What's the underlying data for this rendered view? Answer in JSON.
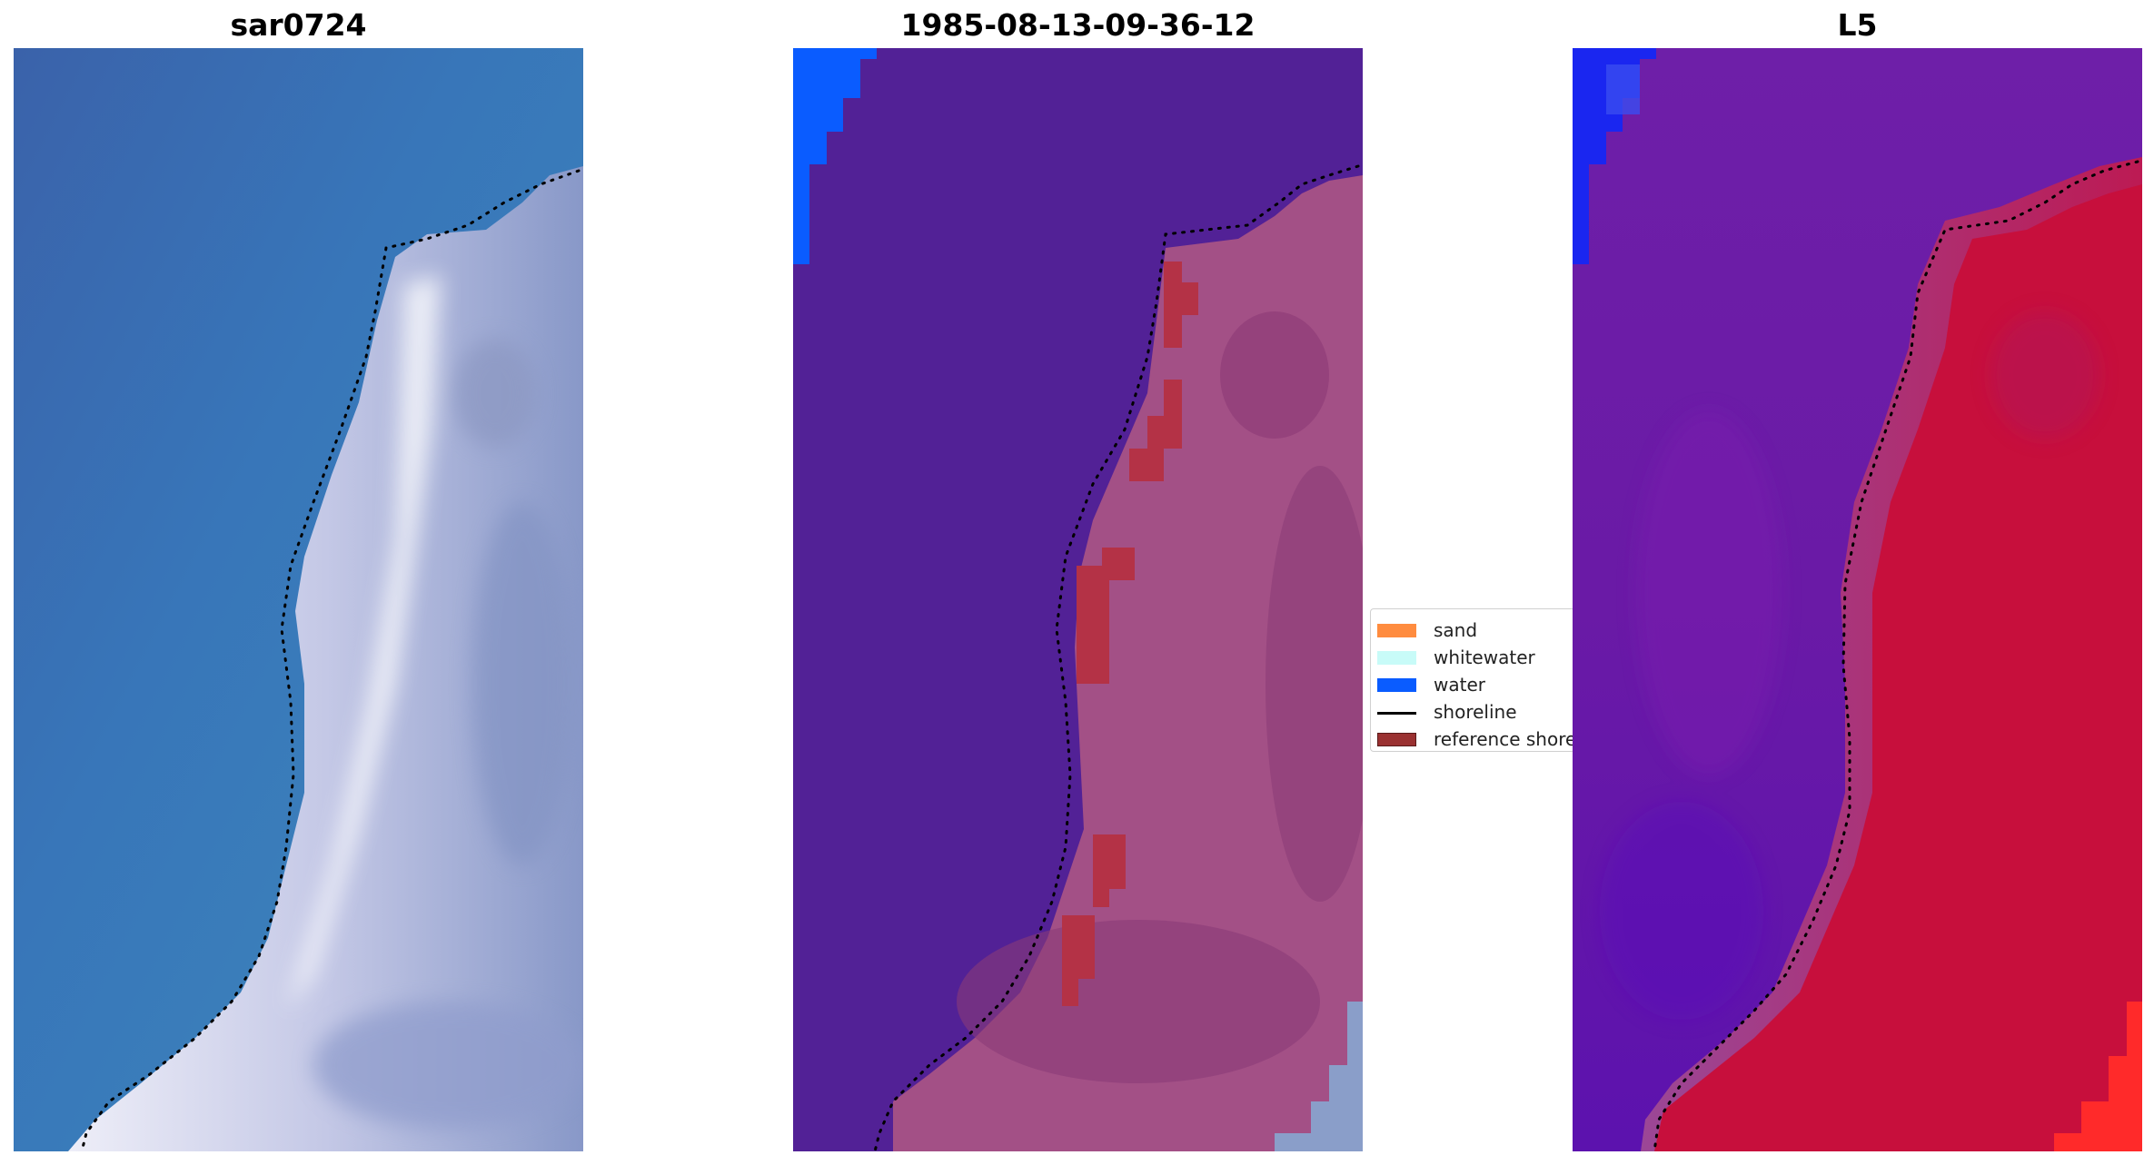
{
  "panels": [
    {
      "title": "sar0724",
      "image": "RGB satellite view of coastline with blue ocean on left and white surf/sand zone on right"
    },
    {
      "title": "1985-08-13-09-36-12",
      "image": "classified image: purple water area on left, pink land area on right, red reference shoreline pixels, dotted shoreline"
    },
    {
      "title": "L5",
      "image": "index map: violet water region on left, red land region on right, dotted shoreline"
    }
  ],
  "legend": {
    "items": [
      {
        "label": "sand",
        "color": "#ff8c3f",
        "kind": "patch"
      },
      {
        "label": "whitewater",
        "color": "#c8fbf8",
        "kind": "patch"
      },
      {
        "label": "water",
        "color": "#0a5cff",
        "kind": "patch"
      },
      {
        "label": "shoreline",
        "color": "#000000",
        "kind": "line"
      },
      {
        "label": "reference shoreline",
        "color": "#9a3131",
        "kind": "patch"
      }
    ]
  },
  "colors": {
    "ocean": "#3b73b6",
    "surf": "#dcdcef",
    "class_water": "#522196",
    "class_land": "#a35086",
    "class_reference": "#b43246",
    "index_water": "#6a19a6",
    "index_land": "#c70f3c"
  }
}
